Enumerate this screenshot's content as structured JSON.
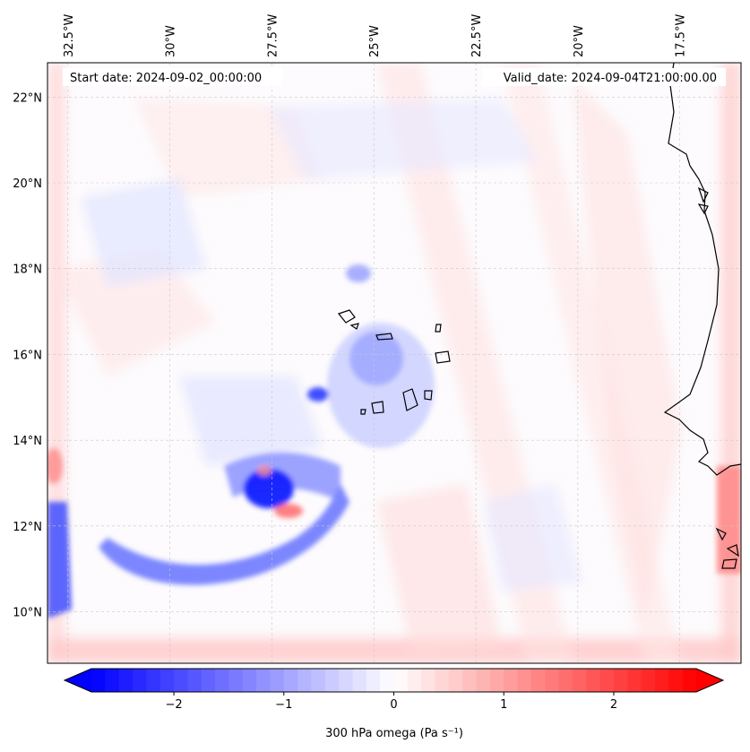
{
  "header": {
    "start_date": "Start date: 2024-09-02_00:00:00",
    "valid_date": "Valid_date: 2024-09-04T21:00:00.00"
  },
  "map": {
    "extent": {
      "lon_min": -33.0,
      "lon_max": -16.0,
      "lat_min": 8.8,
      "lat_max": 22.8
    },
    "lon_ticks": [
      {
        "lon": -32.5,
        "label": "32.5°W"
      },
      {
        "lon": -30.0,
        "label": "30°W"
      },
      {
        "lon": -27.5,
        "label": "27.5°W"
      },
      {
        "lon": -25.0,
        "label": "25°W"
      },
      {
        "lon": -22.5,
        "label": "22.5°W"
      },
      {
        "lon": -20.0,
        "label": "20°W"
      },
      {
        "lon": -17.5,
        "label": "17.5°W"
      }
    ],
    "lat_ticks": [
      {
        "lat": 22,
        "label": "22°N"
      },
      {
        "lat": 20,
        "label": "20°N"
      },
      {
        "lat": 18,
        "label": "18°N"
      },
      {
        "lat": 16,
        "label": "16°N"
      },
      {
        "lat": 14,
        "label": "14°N"
      },
      {
        "lat": 12,
        "label": "12°N"
      },
      {
        "lat": 10,
        "label": "10°N"
      }
    ],
    "field": "300 hPa omega",
    "colors": {
      "negative": "#0000ff",
      "zero": "#ffffff",
      "positive": "#ff0000",
      "grid": "#c8c8c8",
      "coast": "#000000"
    }
  },
  "colorbar": {
    "label": "300 hPa omega (Pa s⁻¹)",
    "vmin": -2.75,
    "vmax": 2.75,
    "ticks": [
      {
        "value": -2,
        "label": "−2"
      },
      {
        "value": -1,
        "label": "−1"
      },
      {
        "value": 0,
        "label": "0"
      },
      {
        "value": 1,
        "label": "1"
      },
      {
        "value": 2,
        "label": "2"
      }
    ]
  }
}
